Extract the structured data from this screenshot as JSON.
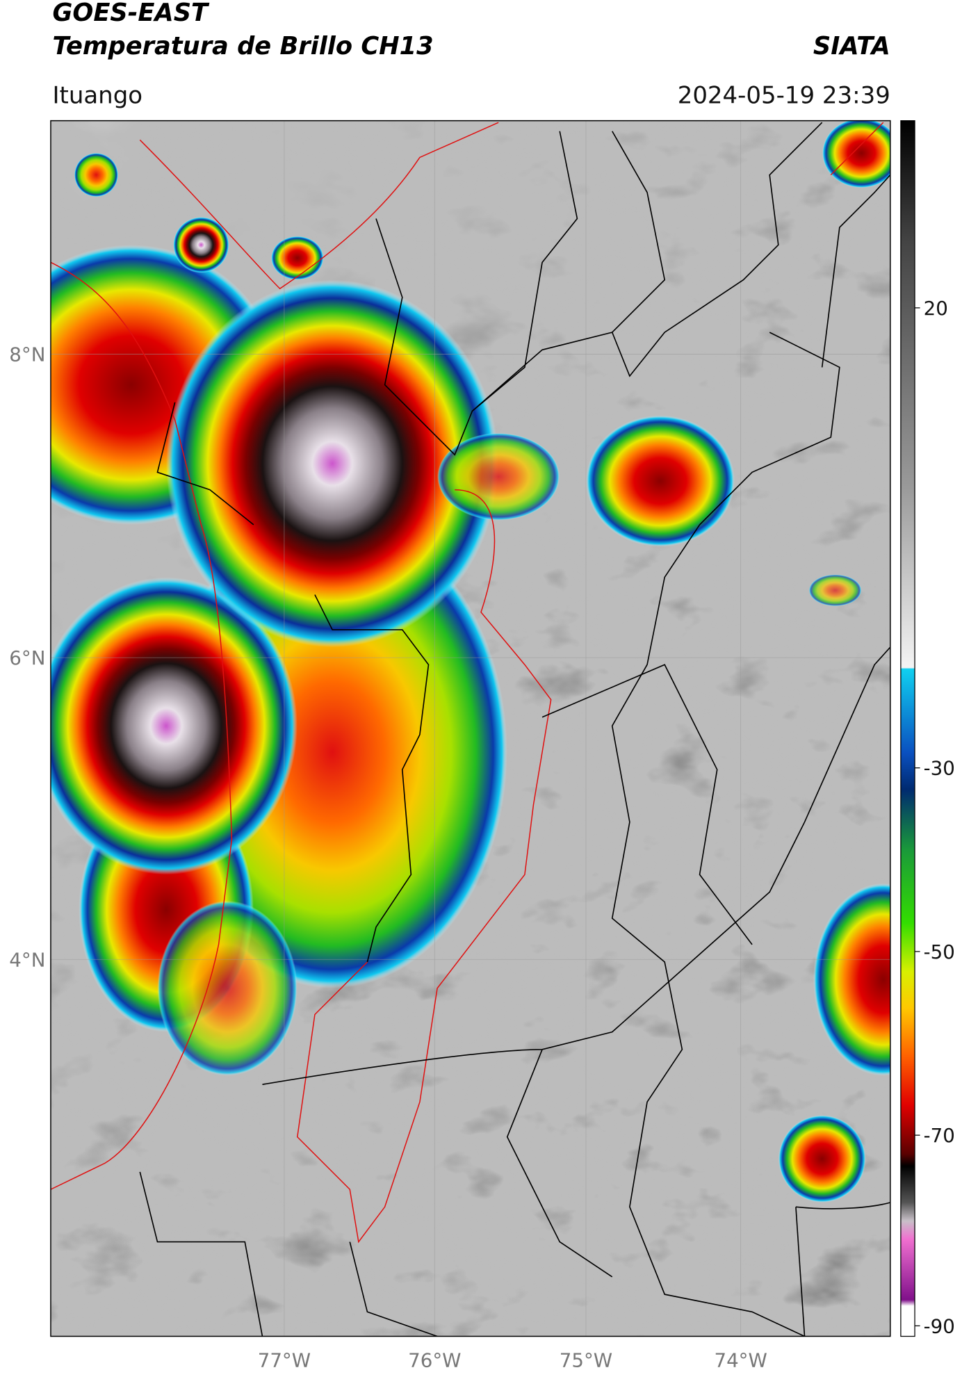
{
  "header": {
    "title": "GOES-EAST",
    "subtitle": "Temperatura de Brillo CH13",
    "source": "SIATA",
    "location": "Ituango",
    "timestamp": "2024-05-19 23:39"
  },
  "map": {
    "lat_labels": [
      "8°N",
      "6°N",
      "4°N"
    ],
    "lon_labels": [
      "77°W",
      "76°W",
      "75°W",
      "74°W"
    ]
  },
  "colorbar": {
    "ticks": [
      "20",
      "-30",
      "-50",
      "-70",
      "-90"
    ]
  }
}
